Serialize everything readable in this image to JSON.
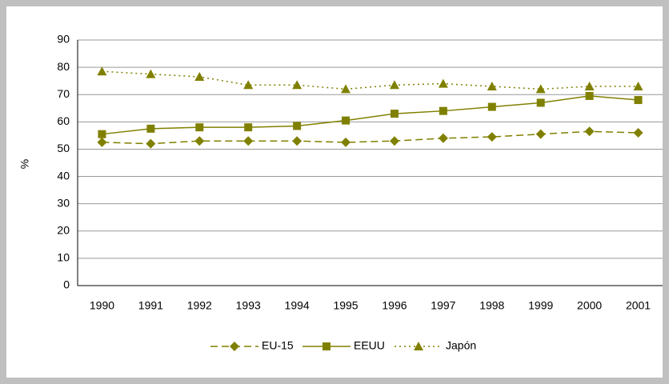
{
  "chart_data": {
    "type": "line",
    "y_label": "%",
    "categories": [
      "1990",
      "1991",
      "1992",
      "1993",
      "1994",
      "1995",
      "1996",
      "1997",
      "1998",
      "1999",
      "2000",
      "2001"
    ],
    "series": [
      {
        "name": "EU-15",
        "color": "#808000",
        "marker": "diamond",
        "dash": "dashed",
        "values": [
          52.5,
          52,
          53,
          53,
          53,
          52.5,
          53,
          54,
          54.5,
          55.5,
          56.5,
          56
        ]
      },
      {
        "name": "EEUU",
        "color": "#808000",
        "marker": "square",
        "dash": "solid",
        "values": [
          55.5,
          57.5,
          58,
          58,
          58.5,
          60.5,
          63,
          64,
          65.5,
          67,
          69.5,
          68
        ]
      },
      {
        "name": "Japón",
        "color": "#808000",
        "marker": "triangle",
        "dash": "dotted",
        "values": [
          78.5,
          77.5,
          76.5,
          73.5,
          73.5,
          72,
          73.5,
          74,
          73,
          72,
          73,
          73
        ]
      }
    ],
    "ylim": [
      0,
      90
    ],
    "yticks": [
      0,
      10,
      20,
      30,
      40,
      50,
      60,
      70,
      80,
      90
    ],
    "grid": true,
    "legend": "bottom"
  }
}
